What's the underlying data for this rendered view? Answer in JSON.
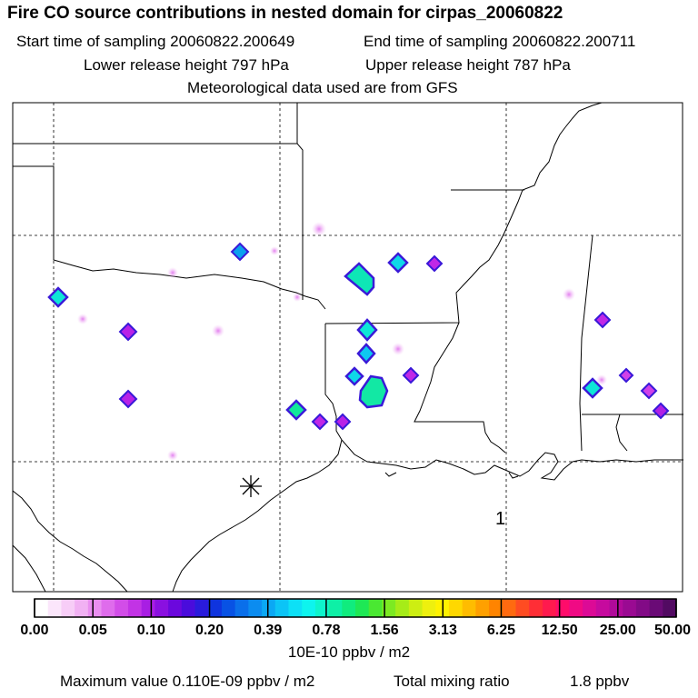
{
  "header": {
    "title": "Fire CO source contributions in nested domain for cirpas_20060822",
    "start_time": "Start time of sampling 20060822.200649",
    "end_time": "End time of sampling 20060822.200711",
    "lower_release": "Lower release height  797 hPa",
    "upper_release": "Upper release height  787 hPa",
    "met_data": "Meteorological data used are from GFS"
  },
  "map": {
    "point_label": "1"
  },
  "colorbar": {
    "tick_labels": [
      "0.00",
      "0.05",
      "0.10",
      "0.20",
      "0.39",
      "0.78",
      "1.56",
      "3.13",
      "6.25",
      "12.50",
      "25.00",
      "50.00"
    ],
    "colors": [
      "#ffffff",
      "#fbe6fb",
      "#f7cdf7",
      "#f1b1f3",
      "#e98ef0",
      "#df6cec",
      "#d24de8",
      "#c233e5",
      "#a81ee3",
      "#8a10e0",
      "#6b08dd",
      "#4a0cdc",
      "#2a1bdc",
      "#0f34de",
      "#0852e4",
      "#0a6fea",
      "#0b8cf0",
      "#0ba8f4",
      "#0cc4f6",
      "#0de0f6",
      "#0ef4ee",
      "#0ef4cc",
      "#0ef0a6",
      "#10ec7e",
      "#1ee855",
      "#4ae832",
      "#7cea22",
      "#a6ec18",
      "#cdee12",
      "#eef00e",
      "#fff200",
      "#ffd800",
      "#ffbc00",
      "#ffa000",
      "#ff8400",
      "#ff6a10",
      "#ff4c22",
      "#ff2e36",
      "#ff1a4e",
      "#ff0c6a",
      "#f00a84",
      "#dc0a96",
      "#c60a9e",
      "#b00a9a",
      "#9a0a92",
      "#820a86",
      "#6a0a76",
      "#520a62"
    ],
    "units": "10E-10 ppbv / m2"
  },
  "footer": {
    "max_value": "Maximum value  0.110E-09 ppbv / m2",
    "total_mixing_label": "Total mixing ratio",
    "total_mixing_value": "1.8 ppbv"
  }
}
